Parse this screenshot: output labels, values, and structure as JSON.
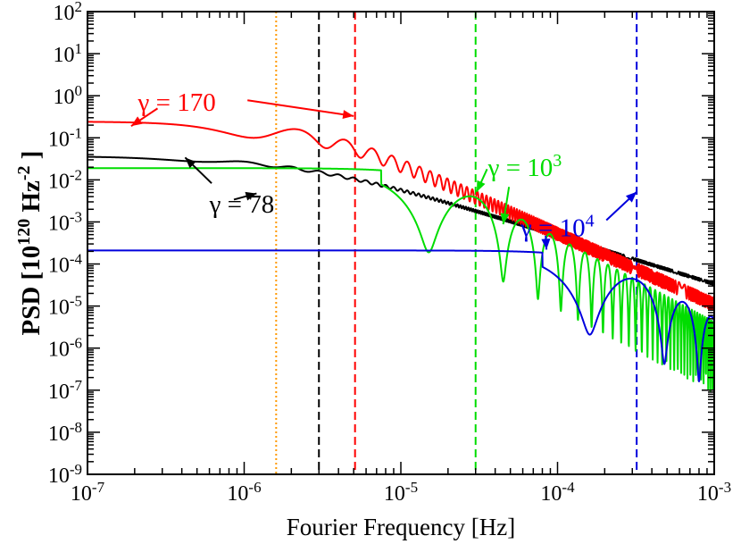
{
  "chart_data": {
    "type": "line",
    "xscale": "log",
    "yscale": "log",
    "xlim": [
      1e-07,
      0.001
    ],
    "ylim": [
      1e-09,
      100
    ],
    "xlabel": "Fourier Frequency [Hz]",
    "ylabel": {
      "base": "PSD [10",
      "exp1": "120",
      "unit": " Hz",
      "exp2": "-2",
      "end": " ]"
    },
    "x_ticks": [
      {
        "base": "10",
        "exp": "-7",
        "value": 1e-07
      },
      {
        "base": "10",
        "exp": "-6",
        "value": 1e-06
      },
      {
        "base": "10",
        "exp": "-5",
        "value": 1e-05
      },
      {
        "base": "10",
        "exp": "-4",
        "value": 0.0001
      },
      {
        "base": "10",
        "exp": "-3",
        "value": 0.001
      }
    ],
    "y_ticks": [
      {
        "base": "10",
        "exp": "2",
        "value": 100
      },
      {
        "base": "10",
        "exp": "1",
        "value": 10
      },
      {
        "base": "10",
        "exp": "0",
        "value": 1
      },
      {
        "base": "10",
        "exp": "-1",
        "value": 0.1
      },
      {
        "base": "10",
        "exp": "-2",
        "value": 0.01
      },
      {
        "base": "10",
        "exp": "-3",
        "value": 0.001
      },
      {
        "base": "10",
        "exp": "-4",
        "value": 0.0001
      },
      {
        "base": "10",
        "exp": "-5",
        "value": 1e-05
      },
      {
        "base": "10",
        "exp": "-6",
        "value": 1e-06
      },
      {
        "base": "10",
        "exp": "-7",
        "value": 1e-07
      },
      {
        "base": "10",
        "exp": "-8",
        "value": 1e-08
      },
      {
        "base": "10",
        "exp": "-9",
        "value": 1e-09
      }
    ],
    "series": [
      {
        "name": "gamma-78",
        "color": "#000000",
        "plateau": 0.034,
        "knee": 2.5e-06,
        "slope": 1.1,
        "shape": "ripple",
        "ripple_amp": 0.08,
        "ripple_period": 1e-06,
        "x_start": 1e-07,
        "x_end": 0.001
      },
      {
        "name": "gamma-170",
        "color": "#ff0000",
        "plateau": 0.18,
        "knee": 3.2e-06,
        "slope": 1.6,
        "shape": "ripple",
        "ripple_amp": 0.35,
        "ripple_period": 2.2e-06,
        "x_start": 1e-07,
        "x_end": 0.001
      },
      {
        "name": "gamma-1000",
        "color": "#00dd00",
        "plateau": 0.019,
        "knee": 1.5e-05,
        "shape": "sinc",
        "period": 3e-05,
        "x_start": 1e-07,
        "x_end": 0.001
      },
      {
        "name": "gamma-10000",
        "color": "#0000dd",
        "plateau": 0.00021,
        "knee": 0.00016,
        "shape": "sinc",
        "period": 0.00032,
        "x_start": 1e-07,
        "x_end": 0.001
      }
    ],
    "vlines": [
      {
        "x": 1.6e-06,
        "color": "#ff9900",
        "style": "dotted"
      },
      {
        "x": 3e-06,
        "color": "#000000",
        "style": "dashed"
      },
      {
        "x": 5.1e-06,
        "color": "#ff0000",
        "style": "dashed"
      },
      {
        "x": 3e-05,
        "color": "#00dd00",
        "style": "dashed"
      },
      {
        "x": 0.00032,
        "color": "#0000dd",
        "style": "dashed"
      }
    ],
    "annotations": [
      {
        "name": "label-gamma-170",
        "color": "#ff0000",
        "text": "γ = 170",
        "text_x": 2.1e-07,
        "text_y": 0.72,
        "arrows": [
          {
            "from": [
              2.8e-07,
              0.5
            ],
            "to": [
              1.9e-07,
              0.19
            ]
          },
          {
            "from": [
              1.05e-06,
              0.78
            ],
            "to": [
              5e-06,
              0.33
            ]
          }
        ]
      },
      {
        "name": "label-gamma-78",
        "color": "#000000",
        "text": "γ = 78",
        "text_x": 6e-07,
        "text_y": 0.00275,
        "arrows": [
          {
            "from": [
              8.6e-07,
              0.0034
            ],
            "to": [
              1.2e-06,
              0.00475
            ]
          },
          {
            "from": [
              6.2e-07,
              0.0083
            ],
            "to": [
              4.2e-07,
              0.034
            ]
          }
        ]
      },
      {
        "name": "label-gamma-1000",
        "color": "#00dd00",
        "text": "γ = 10",
        "sup": "3",
        "text_x": 3.6e-05,
        "text_y": 0.02,
        "arrows": [
          {
            "from": [
              3.55e-05,
              0.018
            ],
            "to": [
              3.05e-05,
              0.0052
            ]
          },
          {
            "from": [
              4.9e-05,
              0.0068
            ],
            "to": [
              4.5e-05,
              0.00088
            ]
          }
        ]
      },
      {
        "name": "label-gamma-10000",
        "color": "#0000dd",
        "text": "γ = 10",
        "sup": "4",
        "text_x": 5.8e-05,
        "text_y": 0.00075,
        "arrows": [
          {
            "from": [
              8.4e-05,
              0.00047
            ],
            "to": [
              8.5e-05,
              0.00022
            ]
          },
          {
            "from": [
              0.000205,
              0.0011
            ],
            "to": [
              0.00032,
              0.0052
            ]
          }
        ]
      }
    ]
  }
}
